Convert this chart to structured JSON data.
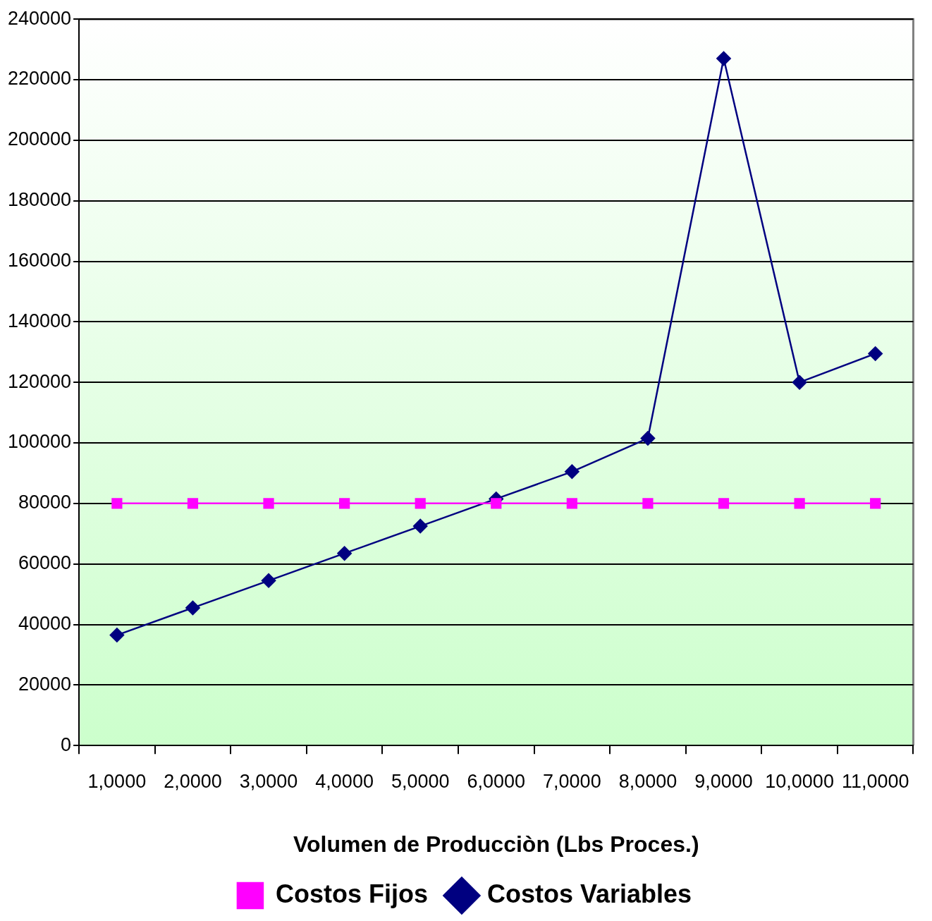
{
  "chart_data": {
    "type": "line",
    "xlabel": "Volumen de Producciòn (Lbs Proces.)",
    "categories": [
      "1,0000",
      "2,0000",
      "3,0000",
      "4,0000",
      "5,0000",
      "6,0000",
      "7,0000",
      "8,0000",
      "9,0000",
      "10,0000",
      "11,0000"
    ],
    "series": [
      {
        "name": "Costos Variables",
        "color": "#000080",
        "marker": "diamond",
        "values": [
          36500,
          45500,
          54500,
          63500,
          72500,
          81500,
          90500,
          101500,
          227000,
          120000,
          129500
        ]
      },
      {
        "name": "Costos Fijos",
        "color": "#ff00ff",
        "marker": "square",
        "values": [
          80000,
          80000,
          80000,
          80000,
          80000,
          80000,
          80000,
          80000,
          80000,
          80000,
          80000
        ]
      }
    ],
    "ylim": [
      0,
      240000
    ],
    "yticks": [
      0,
      20000,
      40000,
      60000,
      80000,
      100000,
      120000,
      140000,
      160000,
      180000,
      200000,
      220000,
      240000
    ],
    "grid": "y",
    "legend": "bottom"
  }
}
